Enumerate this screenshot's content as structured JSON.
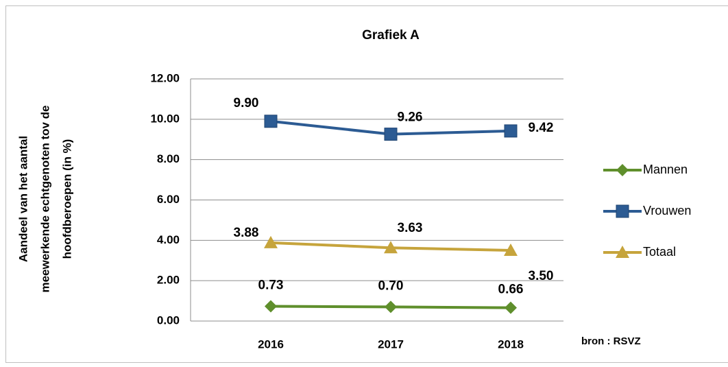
{
  "chart_data": {
    "type": "line",
    "title": "Grafiek A",
    "ylabel": [
      "Aandeel van het aantal",
      "meewerkende echtgenoten tov de",
      "hoofdberoepen (in %)"
    ],
    "note": "bron : RSVZ",
    "categories": [
      "2016",
      "2017",
      "2018"
    ],
    "series": [
      {
        "name": "Mannen",
        "color": "#5f8f2c",
        "marker": "diamond",
        "values": [
          0.73,
          0.7,
          0.66
        ],
        "value_labels": [
          "0.73",
          "0.70",
          "0.66"
        ]
      },
      {
        "name": "Vrouwen",
        "color": "#2c5b93",
        "marker": "square",
        "values": [
          9.9,
          9.26,
          9.42
        ],
        "value_labels": [
          "9.90",
          "9.26",
          "9.42"
        ]
      },
      {
        "name": "Totaal",
        "color": "#c6a43c",
        "marker": "triangle",
        "values": [
          3.88,
          3.63,
          3.5
        ],
        "value_labels": [
          "3.88",
          "3.63",
          "3.50"
        ]
      }
    ],
    "ylim": [
      0,
      12
    ],
    "yticks": [
      {
        "value": 0,
        "label": "0.00"
      },
      {
        "value": 2,
        "label": "2.00"
      },
      {
        "value": 4,
        "label": "4.00"
      },
      {
        "value": 6,
        "label": "6.00"
      },
      {
        "value": 8,
        "label": "8.00"
      },
      {
        "value": 10,
        "label": "10.00"
      },
      {
        "value": 12,
        "label": "12.00"
      }
    ],
    "grid": true,
    "legend": "right"
  }
}
